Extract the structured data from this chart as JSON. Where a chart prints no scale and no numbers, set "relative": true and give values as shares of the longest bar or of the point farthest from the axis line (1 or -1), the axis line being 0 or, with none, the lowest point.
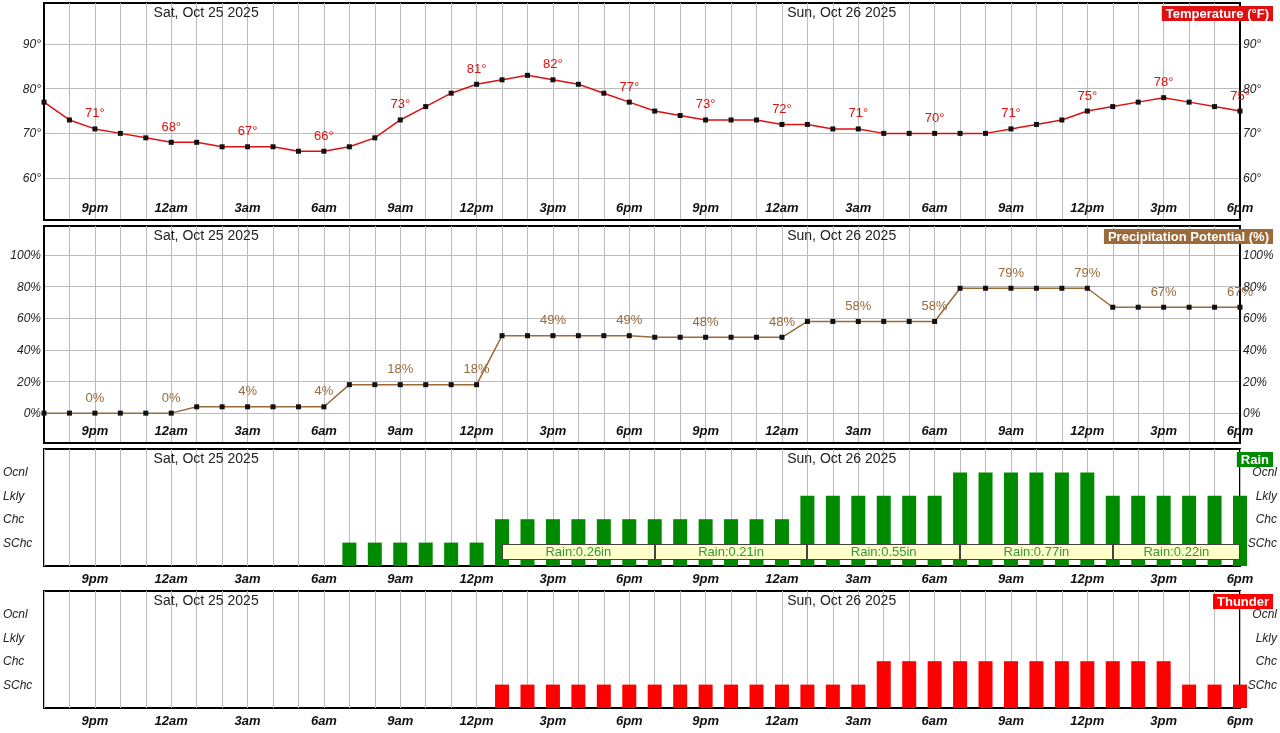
{
  "chart_data": [
    {
      "type": "line",
      "marker": "square",
      "line_style": "solid",
      "grid": true,
      "legend": "top right",
      "ylim": [
        50.6,
        99.2
      ],
      "y2lim": [
        50.6,
        99.2
      ],
      "categories": [
        null,
        null,
        "9pm",
        null,
        null,
        "12am",
        null,
        null,
        "3am",
        null,
        null,
        "6am",
        null,
        null,
        "9am",
        null,
        null,
        "12pm",
        null,
        null,
        "3pm",
        null,
        null,
        "6pm",
        null,
        null,
        "9pm",
        null,
        null,
        "12am",
        null,
        null,
        "3am",
        null,
        null,
        "6am",
        null,
        null,
        "9am",
        null,
        null,
        "12pm",
        null,
        null,
        "3pm",
        null,
        null,
        "6pm"
      ],
      "yticks": [
        {
          "value": 60,
          "label": "60°"
        },
        {
          "value": 70,
          "label": "70°"
        },
        {
          "value": 80,
          "label": "80°"
        },
        {
          "value": 90,
          "label": "90°"
        }
      ],
      "y2ticks": [
        {
          "value": 60,
          "label": "60°"
        },
        {
          "value": 70,
          "label": "70°"
        },
        {
          "value": 80,
          "label": "80°"
        },
        {
          "value": 90,
          "label": "90°"
        }
      ],
      "annotations": [
        "Sat, Oct 25 2025",
        "Sun, Oct 26 2025"
      ],
      "series": [
        {
          "name": "Temperature (°F)",
          "color": "#dd1111",
          "values": [
            77,
            73,
            71,
            70,
            69,
            68,
            68,
            67,
            67,
            67,
            66,
            66,
            67,
            69,
            73,
            76,
            79,
            81,
            82,
            83,
            82,
            81,
            79,
            77,
            75,
            74,
            73,
            73,
            73,
            72,
            72,
            71,
            71,
            70,
            70,
            70,
            70,
            70,
            71,
            72,
            73,
            75,
            76,
            77,
            78,
            77,
            76,
            75
          ],
          "value_labels": [
            null,
            null,
            "71°",
            null,
            null,
            "68°",
            null,
            null,
            "67°",
            null,
            null,
            "66°",
            null,
            null,
            "73°",
            null,
            null,
            "81°",
            null,
            null,
            "82°",
            null,
            null,
            "77°",
            null,
            null,
            "73°",
            null,
            null,
            "72°",
            null,
            null,
            "71°",
            null,
            null,
            "70°",
            null,
            null,
            "71°",
            null,
            null,
            "75°",
            null,
            null,
            "78°",
            null,
            null,
            "75°"
          ]
        }
      ]
    },
    {
      "type": "line",
      "marker": "square",
      "line_style": "solid",
      "grid": true,
      "legend": "top right",
      "ylim": [
        -18.9,
        118.4
      ],
      "y2lim": [
        -18.9,
        118.4
      ],
      "categories": [
        null,
        null,
        "9pm",
        null,
        null,
        "12am",
        null,
        null,
        "3am",
        null,
        null,
        "6am",
        null,
        null,
        "9am",
        null,
        null,
        "12pm",
        null,
        null,
        "3pm",
        null,
        null,
        "6pm",
        null,
        null,
        "9pm",
        null,
        null,
        "12am",
        null,
        null,
        "3am",
        null,
        null,
        "6am",
        null,
        null,
        "9am",
        null,
        null,
        "12pm",
        null,
        null,
        "3pm",
        null,
        null,
        "6pm"
      ],
      "yticks": [
        {
          "value": 0,
          "label": "0%"
        },
        {
          "value": 20,
          "label": "20%"
        },
        {
          "value": 40,
          "label": "40%"
        },
        {
          "value": 60,
          "label": "60%"
        },
        {
          "value": 80,
          "label": "80%"
        },
        {
          "value": 100,
          "label": "100%"
        }
      ],
      "y2ticks": [
        {
          "value": 0,
          "label": "0%"
        },
        {
          "value": 20,
          "label": "20%"
        },
        {
          "value": 40,
          "label": "40%"
        },
        {
          "value": 60,
          "label": "60%"
        },
        {
          "value": 80,
          "label": "80%"
        },
        {
          "value": 100,
          "label": "100%"
        }
      ],
      "annotations": [
        "Sat, Oct 25 2025",
        "Sun, Oct 26 2025"
      ],
      "series": [
        {
          "name": "Precipitation Potential (%)",
          "color": "#9a6a3a",
          "values": [
            0,
            0,
            0,
            0,
            0,
            0,
            4,
            4,
            4,
            4,
            4,
            4,
            18,
            18,
            18,
            18,
            18,
            18,
            49,
            49,
            49,
            49,
            49,
            49,
            48,
            48,
            48,
            48,
            48,
            48,
            58,
            58,
            58,
            58,
            58,
            58,
            79,
            79,
            79,
            79,
            79,
            79,
            67,
            67,
            67,
            67,
            67,
            67
          ],
          "value_labels": [
            null,
            null,
            "0%",
            null,
            null,
            "0%",
            null,
            null,
            "4%",
            null,
            null,
            "4%",
            null,
            null,
            "18%",
            null,
            null,
            "18%",
            null,
            null,
            "49%",
            null,
            null,
            "49%",
            null,
            null,
            "48%",
            null,
            null,
            "48%",
            null,
            null,
            "58%",
            null,
            null,
            "58%",
            null,
            null,
            "79%",
            null,
            null,
            "79%",
            null,
            null,
            "67%",
            null,
            null,
            "67%"
          ]
        }
      ]
    },
    {
      "type": "bar",
      "relative": true,
      "grid": "x",
      "legend": "top right",
      "categories": [
        null,
        null,
        "9pm",
        null,
        null,
        "12am",
        null,
        null,
        "3am",
        null,
        null,
        "6am",
        null,
        null,
        "9am",
        null,
        null,
        "12pm",
        null,
        null,
        "3pm",
        null,
        null,
        "6pm",
        null,
        null,
        "9pm",
        null,
        null,
        "12am",
        null,
        null,
        "3am",
        null,
        null,
        "6am",
        null,
        null,
        "9am",
        null,
        null,
        "12pm",
        null,
        null,
        "3pm",
        null,
        null,
        "6pm"
      ],
      "annotations": [
        "Sat, Oct 25 2025",
        "Sun, Oct 26 2025",
        "Ocnl",
        "Lkly",
        "Chc",
        "SChc",
        "Ocnl",
        "Lkly",
        "Chc",
        "SChc",
        "Rain:0.26in",
        "Rain:0.21in",
        "Rain:0.55in",
        "Rain:0.77in",
        "Rain:0.22in"
      ],
      "series": [
        {
          "name": "Rain",
          "color": "#008a00",
          "values": [
            null,
            null,
            null,
            null,
            null,
            null,
            null,
            null,
            null,
            null,
            null,
            null,
            0.25,
            0.25,
            0.25,
            0.25,
            0.25,
            0.25,
            0.5,
            0.5,
            0.5,
            0.5,
            0.5,
            0.5,
            0.5,
            0.5,
            0.5,
            0.5,
            0.5,
            0.5,
            0.75,
            0.75,
            0.75,
            0.75,
            0.75,
            0.75,
            1,
            1,
            1,
            1,
            1,
            1,
            0.75,
            0.75,
            0.75,
            0.75,
            0.75,
            0.75
          ]
        }
      ]
    },
    {
      "type": "bar",
      "relative": true,
      "grid": "x",
      "legend": "top right",
      "categories": [
        null,
        null,
        "9pm",
        null,
        null,
        "12am",
        null,
        null,
        "3am",
        null,
        null,
        "6am",
        null,
        null,
        "9am",
        null,
        null,
        "12pm",
        null,
        null,
        "3pm",
        null,
        null,
        "6pm",
        null,
        null,
        "9pm",
        null,
        null,
        "12am",
        null,
        null,
        "3am",
        null,
        null,
        "6am",
        null,
        null,
        "9am",
        null,
        null,
        "12pm",
        null,
        null,
        "3pm",
        null,
        null,
        "6pm"
      ],
      "annotations": [
        "Sat, Oct 25 2025",
        "Sun, Oct 26 2025",
        "Ocnl",
        "Lkly",
        "Chc",
        "SChc",
        "Ocnl",
        "Lkly",
        "Chc",
        "SChc"
      ],
      "series": [
        {
          "name": "Thunder",
          "color": "#ff0000",
          "values": [
            null,
            null,
            null,
            null,
            null,
            null,
            null,
            null,
            null,
            null,
            null,
            null,
            null,
            null,
            null,
            null,
            null,
            null,
            0.5,
            0.5,
            0.5,
            0.5,
            0.5,
            0.5,
            0.5,
            0.5,
            0.5,
            0.5,
            0.5,
            0.5,
            0.5,
            0.5,
            0.5,
            1,
            1,
            1,
            1,
            1,
            1,
            1,
            1,
            1,
            1,
            1,
            1,
            0.5,
            0.5,
            0.5
          ]
        }
      ]
    }
  ]
}
